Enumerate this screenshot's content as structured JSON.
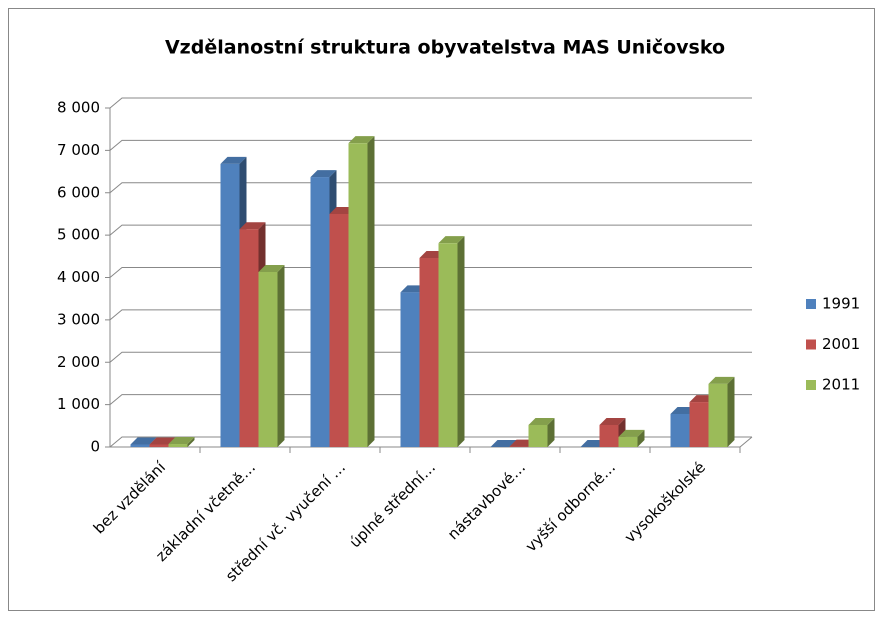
{
  "chart_data": {
    "type": "bar3d",
    "title": "Vzdělanostní struktura obyvatelstva MAS Uničovsko",
    "categories": [
      "bez vzdělání",
      "základní včetně…",
      "střední vč. vyučení …",
      "úplné střední…",
      "nástavbové…",
      "vyšší odborné…",
      "vysokoškolské"
    ],
    "series": [
      {
        "name": "1991",
        "color": "#4f81bd",
        "values": [
          60,
          6680,
          6370,
          3650,
          0,
          0,
          780
        ]
      },
      {
        "name": "2001",
        "color": "#c0504d",
        "values": [
          60,
          5140,
          5500,
          4460,
          10,
          520,
          1060
        ]
      },
      {
        "name": "2011",
        "color": "#9bbb59",
        "values": [
          70,
          4130,
          7170,
          4810,
          520,
          240,
          1490
        ]
      }
    ],
    "ylim": [
      0,
      8000
    ],
    "yticks": [
      0,
      {
        "value": 1000,
        "label": "1 000"
      },
      {
        "value": 2000,
        "label": "2 000"
      },
      {
        "value": 3000,
        "label": "3 000"
      },
      {
        "value": 4000,
        "label": "4 000"
      },
      {
        "value": 5000,
        "label": "5 000"
      },
      {
        "value": 6000,
        "label": "6 000"
      },
      {
        "value": 7000,
        "label": "7 000"
      },
      {
        "value": 8000,
        "label": "8 000"
      }
    ],
    "grid": true,
    "legend": "right"
  }
}
